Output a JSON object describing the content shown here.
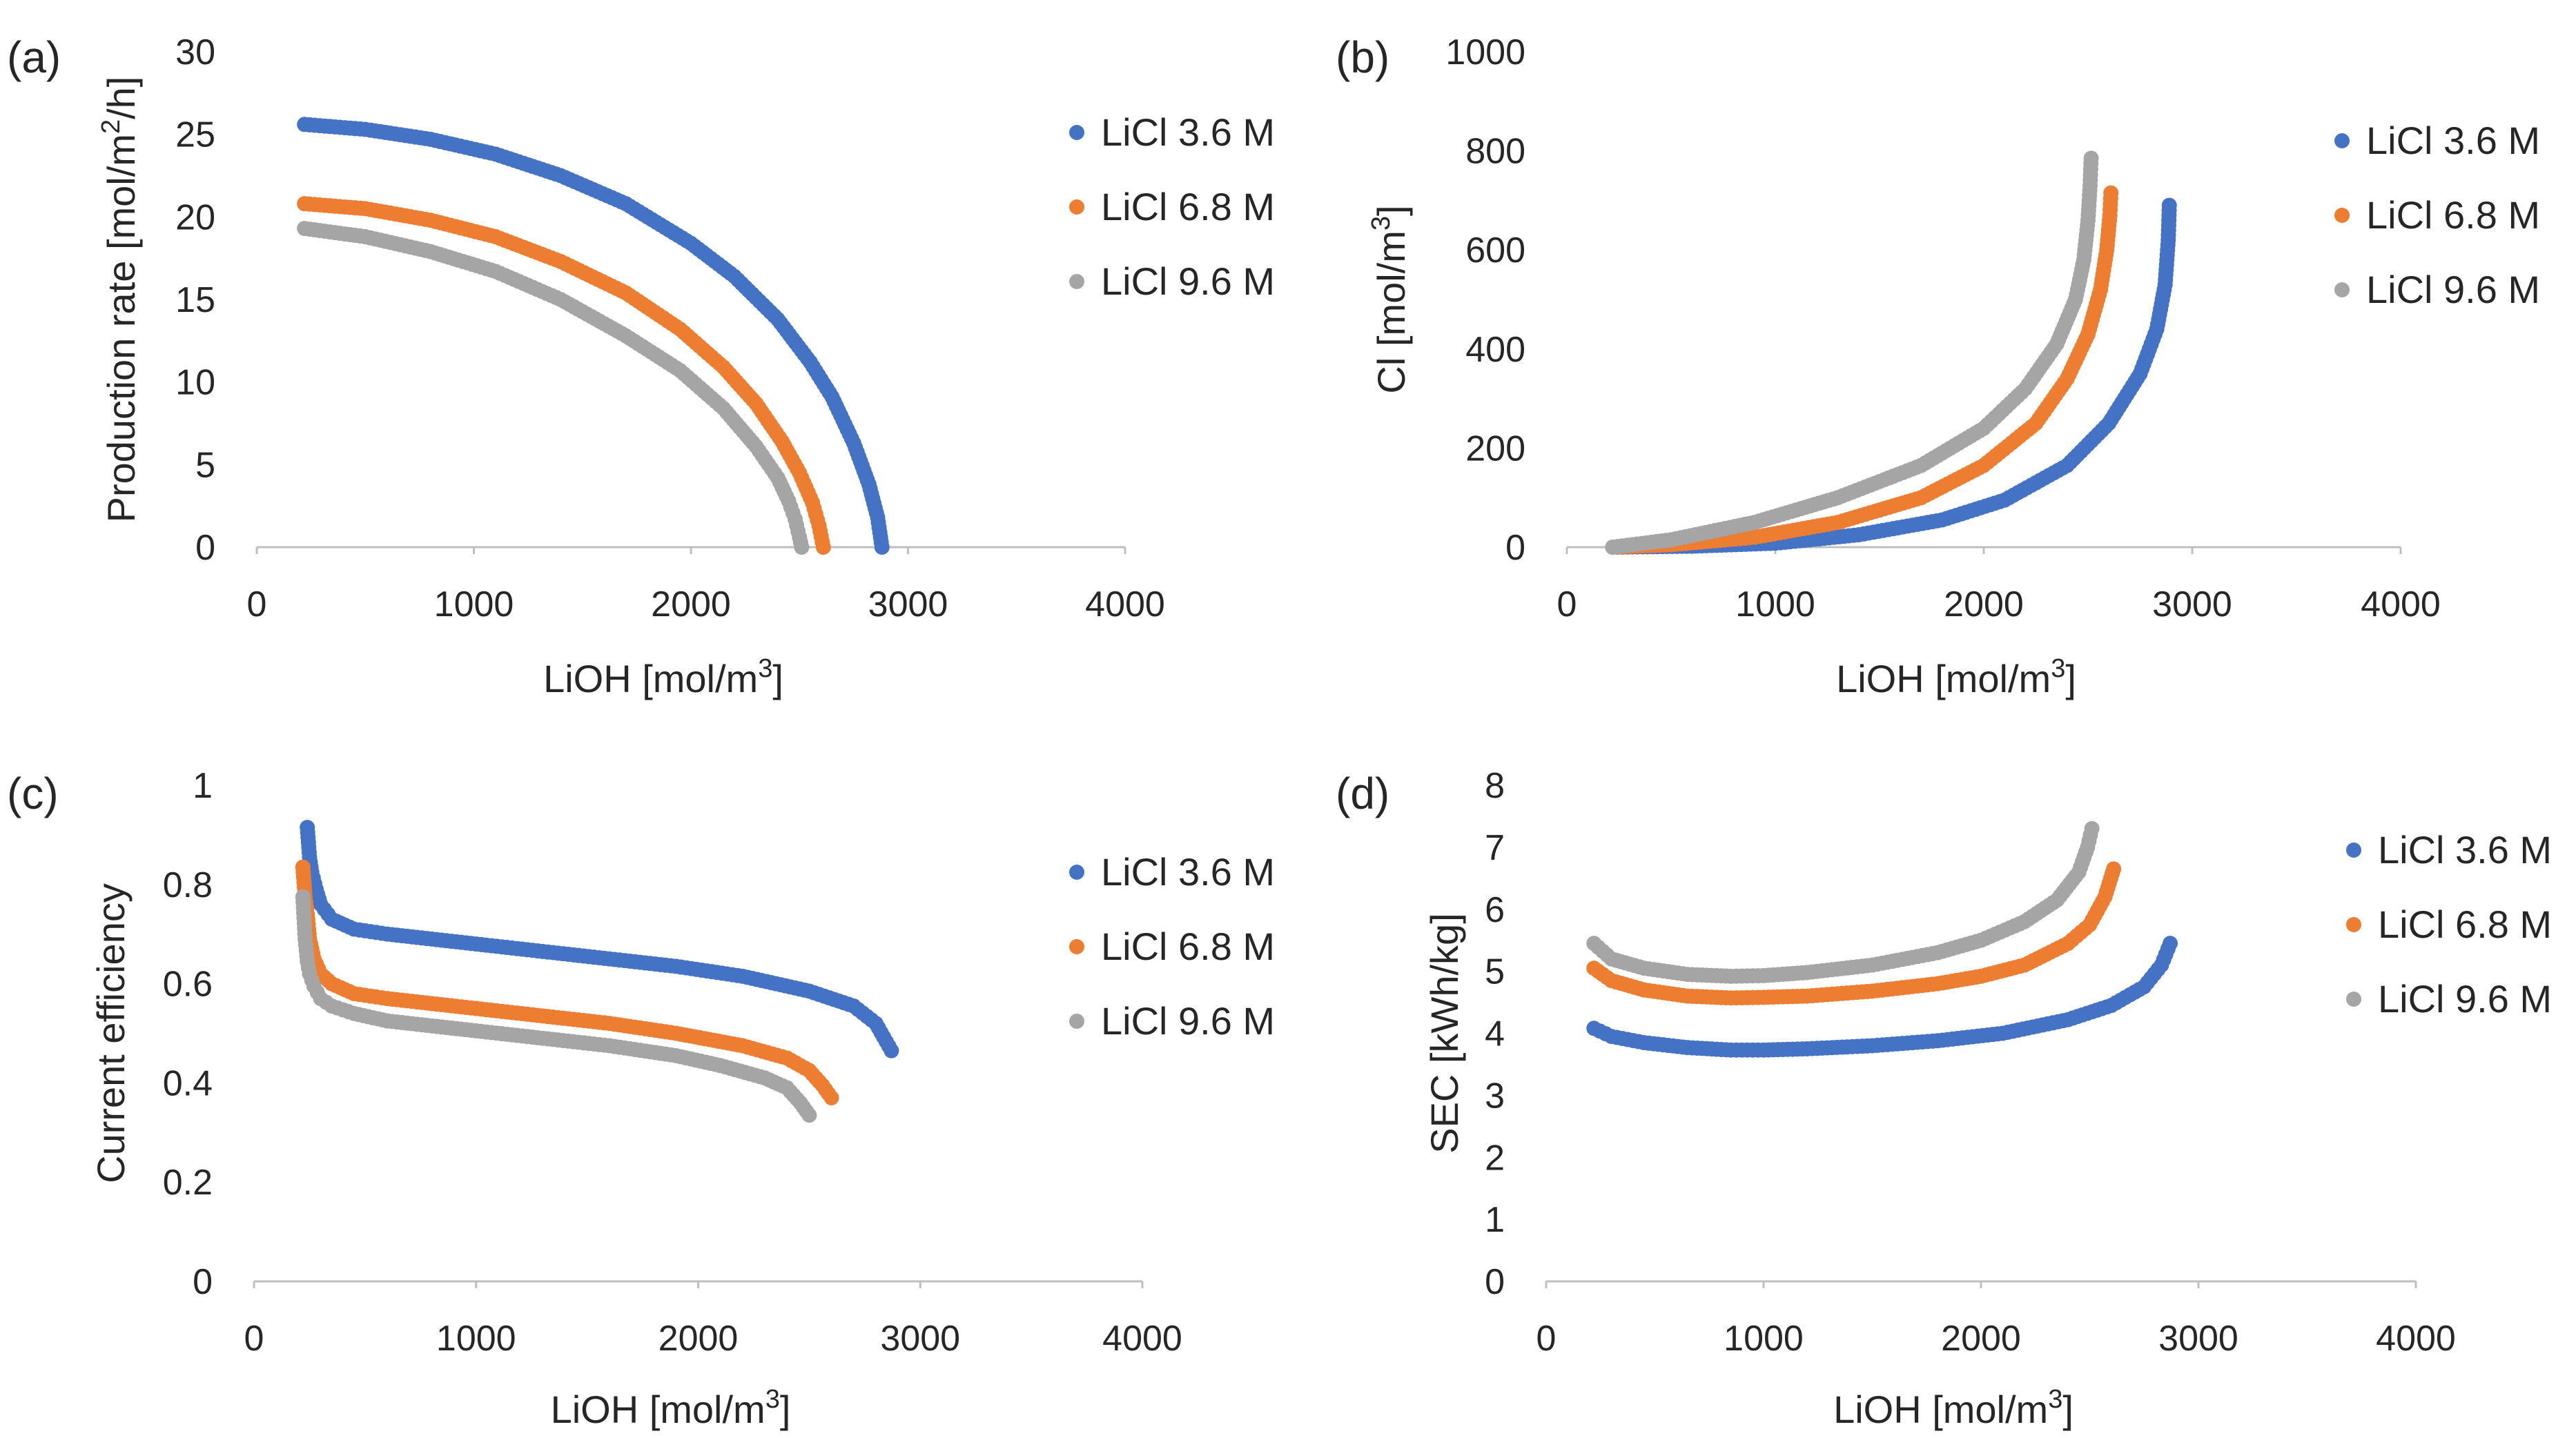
{
  "colors": {
    "s1": "#4472C4",
    "s2": "#ED7D31",
    "s3": "#A5A5A5"
  },
  "chart_data": [
    {
      "panel": "(a)",
      "type": "scatter",
      "xlabel": "LiOH [mol/m",
      "xlabel_sup": "3",
      "xlabel_end": "]",
      "ylabel": "Production rate [mol/m",
      "ylabel_sup": "2",
      "ylabel_end": "/h]",
      "xlim": [
        0,
        4000
      ],
      "ylim": [
        0,
        30
      ],
      "xticks": [
        0,
        1000,
        2000,
        3000,
        4000
      ],
      "yticks": [
        0,
        5,
        10,
        15,
        20,
        25,
        30
      ],
      "legend_position": "right",
      "series": [
        {
          "name": "LiCl 3.6 M",
          "x": [
            220,
            500,
            800,
            1100,
            1400,
            1700,
            2000,
            2200,
            2400,
            2550,
            2650,
            2750,
            2820,
            2860,
            2880
          ],
          "y": [
            25.6,
            25.3,
            24.7,
            23.8,
            22.5,
            20.8,
            18.4,
            16.4,
            13.8,
            11.2,
            9.1,
            6.3,
            3.8,
            1.8,
            0.0
          ]
        },
        {
          "name": "LiCl 6.8 M",
          "x": [
            220,
            500,
            800,
            1100,
            1400,
            1700,
            1950,
            2150,
            2300,
            2420,
            2500,
            2560,
            2590,
            2610
          ],
          "y": [
            20.8,
            20.5,
            19.8,
            18.8,
            17.3,
            15.4,
            13.2,
            10.9,
            8.7,
            6.4,
            4.5,
            2.7,
            1.3,
            0.0
          ]
        },
        {
          "name": "LiCl 9.6 M",
          "x": [
            220,
            500,
            800,
            1100,
            1400,
            1700,
            1950,
            2150,
            2300,
            2400,
            2450,
            2480,
            2500,
            2510
          ],
          "y": [
            19.3,
            18.8,
            17.9,
            16.7,
            15.0,
            12.8,
            10.7,
            8.4,
            6.1,
            4.2,
            2.8,
            1.7,
            0.6,
            0.0
          ]
        }
      ]
    },
    {
      "panel": "(b)",
      "type": "scatter",
      "xlabel": "LiOH [mol/m",
      "xlabel_sup": "3",
      "xlabel_end": "]",
      "ylabel": "Cl [mol/m",
      "ylabel_sup": "3",
      "ylabel_end": "]",
      "xlim": [
        0,
        4000
      ],
      "ylim": [
        0,
        1000
      ],
      "xticks": [
        0,
        1000,
        2000,
        3000,
        4000
      ],
      "yticks": [
        0,
        200,
        400,
        600,
        800,
        1000
      ],
      "legend_position": "right",
      "series": [
        {
          "name": "LiCl 3.6 M",
          "x": [
            220,
            600,
            1000,
            1400,
            1800,
            2100,
            2400,
            2600,
            2750,
            2830,
            2870,
            2885,
            2890
          ],
          "y": [
            0,
            2,
            8,
            25,
            55,
            95,
            165,
            250,
            350,
            440,
            530,
            620,
            690
          ]
        },
        {
          "name": "LiCl 6.8 M",
          "x": [
            220,
            500,
            900,
            1300,
            1700,
            2000,
            2250,
            2400,
            2500,
            2560,
            2590,
            2605,
            2610
          ],
          "y": [
            0,
            5,
            20,
            50,
            100,
            165,
            250,
            340,
            430,
            520,
            600,
            670,
            715
          ]
        },
        {
          "name": "LiCl 9.6 M",
          "x": [
            220,
            500,
            900,
            1300,
            1700,
            2000,
            2200,
            2350,
            2440,
            2480,
            2500,
            2510,
            2515
          ],
          "y": [
            0,
            15,
            50,
            100,
            165,
            240,
            320,
            410,
            500,
            580,
            660,
            730,
            785
          ]
        }
      ]
    },
    {
      "panel": "(c)",
      "type": "scatter",
      "xlabel": "LiOH [mol/m",
      "xlabel_sup": "3",
      "xlabel_end": "]",
      "ylabel": "Current efficiency",
      "ylabel_sup": "",
      "ylabel_end": "",
      "xlim": [
        0,
        4000
      ],
      "ylim": [
        0,
        1
      ],
      "xticks": [
        0,
        1000,
        2000,
        3000,
        4000
      ],
      "yticks": [
        0,
        0.2,
        0.4,
        0.6,
        0.8,
        1
      ],
      "legend_position": "right",
      "series": [
        {
          "name": "LiCl 3.6 M",
          "x": [
            240,
            250,
            260,
            280,
            300,
            350,
            450,
            600,
            800,
            1000,
            1300,
            1600,
            1900,
            2200,
            2500,
            2700,
            2800,
            2870
          ],
          "y": [
            0.915,
            0.855,
            0.825,
            0.79,
            0.76,
            0.73,
            0.71,
            0.7,
            0.69,
            0.68,
            0.665,
            0.65,
            0.635,
            0.615,
            0.585,
            0.555,
            0.52,
            0.465
          ]
        },
        {
          "name": "LiCl 6.8 M",
          "x": [
            220,
            230,
            240,
            250,
            270,
            300,
            350,
            450,
            600,
            800,
            1000,
            1300,
            1600,
            1900,
            2200,
            2400,
            2500,
            2560,
            2600
          ],
          "y": [
            0.835,
            0.775,
            0.74,
            0.69,
            0.65,
            0.62,
            0.6,
            0.58,
            0.57,
            0.56,
            0.55,
            0.535,
            0.52,
            0.5,
            0.475,
            0.45,
            0.425,
            0.395,
            0.37
          ]
        },
        {
          "name": "LiCl 9.6 M",
          "x": [
            220,
            230,
            240,
            250,
            270,
            300,
            350,
            450,
            600,
            800,
            1000,
            1300,
            1600,
            1900,
            2100,
            2300,
            2400,
            2460,
            2500
          ],
          "y": [
            0.775,
            0.69,
            0.645,
            0.62,
            0.595,
            0.57,
            0.555,
            0.54,
            0.525,
            0.515,
            0.505,
            0.49,
            0.475,
            0.455,
            0.435,
            0.41,
            0.39,
            0.36,
            0.335
          ]
        }
      ]
    },
    {
      "panel": "(d)",
      "type": "scatter",
      "xlabel": "LiOH [mol/m",
      "xlabel_sup": "3",
      "xlabel_end": "]",
      "ylabel": "SEC [kWh/kg]",
      "ylabel_sup": "",
      "ylabel_end": "",
      "xlim": [
        0,
        4000
      ],
      "ylim": [
        0,
        8
      ],
      "xticks": [
        0,
        1000,
        2000,
        3000,
        4000
      ],
      "yticks": [
        0,
        1,
        2,
        3,
        4,
        5,
        6,
        7,
        8
      ],
      "legend_position": "right",
      "series": [
        {
          "name": "LiCl 3.6 M",
          "x": [
            220,
            300,
            450,
            650,
            850,
            1000,
            1200,
            1500,
            1800,
            2100,
            2400,
            2600,
            2750,
            2830,
            2870
          ],
          "y": [
            4.08,
            3.95,
            3.85,
            3.77,
            3.73,
            3.73,
            3.75,
            3.8,
            3.88,
            4.0,
            4.22,
            4.45,
            4.75,
            5.1,
            5.45
          ]
        },
        {
          "name": "LiCl 6.8 M",
          "x": [
            220,
            300,
            450,
            650,
            850,
            1000,
            1200,
            1500,
            1800,
            2000,
            2200,
            2400,
            2500,
            2570,
            2610
          ],
          "y": [
            5.05,
            4.85,
            4.7,
            4.6,
            4.57,
            4.58,
            4.6,
            4.68,
            4.8,
            4.92,
            5.1,
            5.45,
            5.75,
            6.2,
            6.65
          ]
        },
        {
          "name": "LiCl 9.6 M",
          "x": [
            220,
            300,
            450,
            650,
            850,
            1000,
            1200,
            1500,
            1800,
            2000,
            2200,
            2350,
            2450,
            2490,
            2510
          ],
          "y": [
            5.45,
            5.2,
            5.05,
            4.95,
            4.92,
            4.93,
            4.98,
            5.1,
            5.3,
            5.5,
            5.8,
            6.15,
            6.6,
            7.0,
            7.3
          ]
        }
      ]
    }
  ]
}
